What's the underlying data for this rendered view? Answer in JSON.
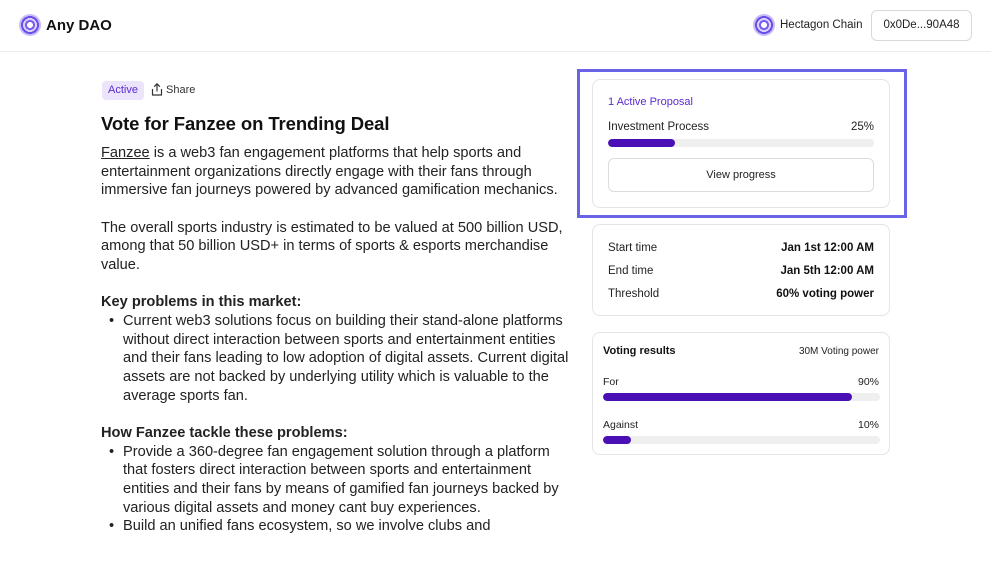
{
  "header": {
    "brand": "Any DAO",
    "chain_name": "Hectagon Chain",
    "wallet": "0x0De...90A48",
    "icons": [
      "dao-logo-icon",
      "chain-logo-icon"
    ]
  },
  "proposal": {
    "status": "Active",
    "share_label": "Share",
    "title": "Vote for Fanzee on Trending Deal",
    "intro_link": "Fanzee",
    "intro_rest": " is a web3 fan engagement platforms that help sports and entertainment organizations directly engage with their fans through immersive fan journeys powered by advanced gamification mechanics.",
    "paragraph2": "The overall sports industry is estimated to be valued at 500 billion USD, among that 50 billion USD+ in terms of sports & esports merchandise value.",
    "section1_heading": "Key problems in this market:",
    "section1_items": [
      "Current web3 solutions focus on building their stand-alone platforms without direct interaction between sports and entertainment entities and their fans leading to low adoption of digital assets. Current digital assets are not backed by underlying utility which is valuable to the average sports fan."
    ],
    "section2_heading": "How Fanzee tackle these problems:",
    "section2_items": [
      "Provide a 360-degree fan engagement solution through a platform that fosters direct interaction between sports and entertainment entities and their fans by means of gamified fan journeys backed by various digital assets and money cant buy experiences.",
      "Build an unified fans ecosystem, so we involve clubs and"
    ]
  },
  "progress_card": {
    "active_label": "1 Active Proposal",
    "process_name": "Investment Process",
    "percent_label": "25%",
    "percent_value": 0.25,
    "button_label": "View progress"
  },
  "details_card": {
    "rows": [
      {
        "label": "Start time",
        "value": "Jan 1st 12:00 AM"
      },
      {
        "label": "End time",
        "value": "Jan 5th 12:00 AM"
      },
      {
        "label": "Threshold",
        "value": "60% voting power"
      }
    ]
  },
  "voting_card": {
    "title": "Voting results",
    "total": "30M Voting power",
    "options": [
      {
        "label": "For",
        "percent_label": "90%",
        "value": 0.9
      },
      {
        "label": "Against",
        "percent_label": "10%",
        "value": 0.1
      }
    ]
  },
  "colors": {
    "accent": "#4a0fb5",
    "badge_bg": "#ebe4fb",
    "highlight_border": "#6b63e6"
  }
}
